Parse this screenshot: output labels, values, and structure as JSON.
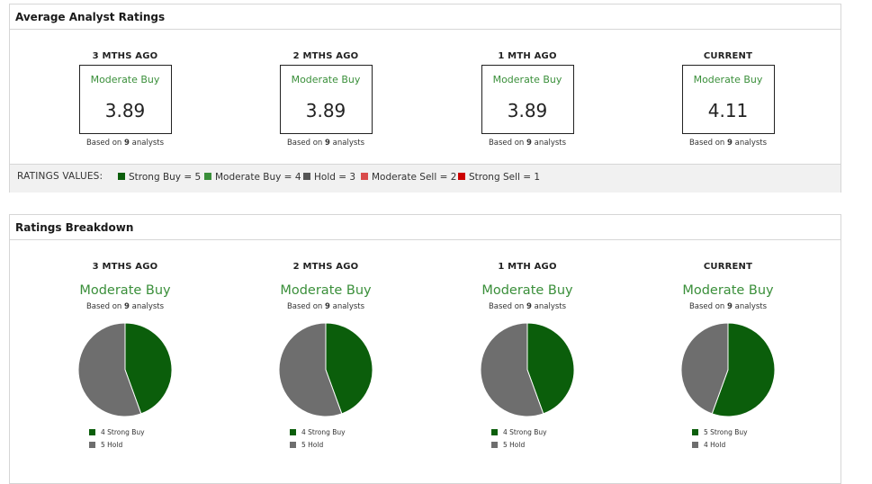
{
  "average": {
    "title": "Average Analyst Ratings",
    "columns": [
      {
        "period": "3 MTHS AGO",
        "rating": "Moderate Buy",
        "value": "3.89",
        "based_pre": "Based on ",
        "count": "9",
        "based_post": " analysts"
      },
      {
        "period": "2 MTHS AGO",
        "rating": "Moderate Buy",
        "value": "3.89",
        "based_pre": "Based on ",
        "count": "9",
        "based_post": " analysts"
      },
      {
        "period": "1 MTH AGO",
        "rating": "Moderate Buy",
        "value": "3.89",
        "based_pre": "Based on ",
        "count": "9",
        "based_post": " analysts"
      },
      {
        "period": "CURRENT",
        "rating": "Moderate Buy",
        "value": "4.11",
        "based_pre": "Based on ",
        "count": "9",
        "based_post": " analysts"
      }
    ],
    "legend_title": "RATINGS VALUES:",
    "legend": [
      {
        "label": "Strong Buy = 5",
        "color": "#0b5e0b"
      },
      {
        "label": "Moderate Buy = 4",
        "color": "#3a8f3a"
      },
      {
        "label": "Hold = 3",
        "color": "#555555"
      },
      {
        "label": "Moderate Sell = 2",
        "color": "#d94a4a"
      },
      {
        "label": "Strong Sell = 1",
        "color": "#cc0000"
      }
    ]
  },
  "breakdown": {
    "title": "Ratings Breakdown",
    "columns": [
      {
        "period": "3 MTHS AGO",
        "rating": "Moderate Buy",
        "based_pre": "Based on ",
        "count": "9",
        "based_post": " analysts",
        "slices": [
          {
            "label": "4 Strong Buy",
            "value": 4,
            "color": "#0b5e0b"
          },
          {
            "label": "5 Hold",
            "value": 5,
            "color": "#6e6e6e"
          }
        ]
      },
      {
        "period": "2 MTHS AGO",
        "rating": "Moderate Buy",
        "based_pre": "Based on ",
        "count": "9",
        "based_post": " analysts",
        "slices": [
          {
            "label": "4 Strong Buy",
            "value": 4,
            "color": "#0b5e0b"
          },
          {
            "label": "5 Hold",
            "value": 5,
            "color": "#6e6e6e"
          }
        ]
      },
      {
        "period": "1 MTH AGO",
        "rating": "Moderate Buy",
        "based_pre": "Based on ",
        "count": "9",
        "based_post": " analysts",
        "slices": [
          {
            "label": "4 Strong Buy",
            "value": 4,
            "color": "#0b5e0b"
          },
          {
            "label": "5 Hold",
            "value": 5,
            "color": "#6e6e6e"
          }
        ]
      },
      {
        "period": "CURRENT",
        "rating": "Moderate Buy",
        "based_pre": "Based on ",
        "count": "9",
        "based_post": " analysts",
        "slices": [
          {
            "label": "5 Strong Buy",
            "value": 5,
            "color": "#0b5e0b"
          },
          {
            "label": "4 Hold",
            "value": 4,
            "color": "#6e6e6e"
          }
        ]
      }
    ]
  }
}
